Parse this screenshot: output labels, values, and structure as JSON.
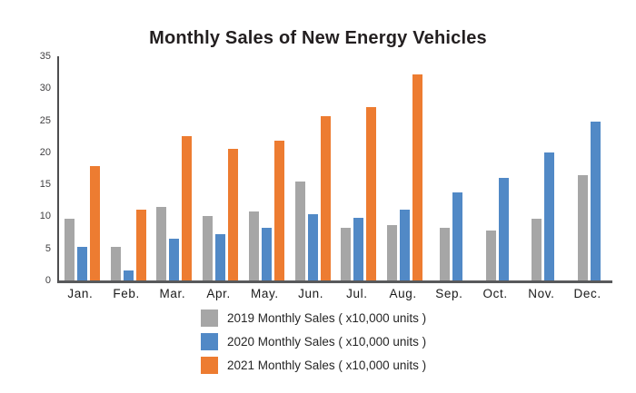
{
  "title": "Monthly Sales of New Energy Vehicles",
  "chart_data": {
    "type": "bar",
    "title": "Monthly Sales of New Energy Vehicles",
    "categories": [
      "Jan.",
      "Feb.",
      "Mar.",
      "Apr.",
      "May.",
      "Jun.",
      "Jul.",
      "Aug.",
      "Sep.",
      "Oct.",
      "Nov.",
      "Dec."
    ],
    "series": [
      {
        "name": "2019",
        "label": "2019 Monthly Sales ( x10,000 units )",
        "color": "#a6a6a6",
        "values": [
          9.7,
          5.3,
          11.5,
          10.0,
          10.8,
          15.5,
          8.2,
          8.6,
          8.2,
          7.8,
          9.6,
          16.5
        ]
      },
      {
        "name": "2020",
        "label": "2020 Monthly Sales ( x10,000 units )",
        "color": "#5189c6",
        "values": [
          5.2,
          1.5,
          6.5,
          7.2,
          8.2,
          10.4,
          9.8,
          11.0,
          13.8,
          16.0,
          20.0,
          24.8
        ]
      },
      {
        "name": "2021",
        "label": "2021 Monthly Sales ( x10,000 units )",
        "color": "#ed7c31",
        "values": [
          17.9,
          11.1,
          22.6,
          20.6,
          21.8,
          25.7,
          27.1,
          32.1,
          null,
          null,
          null,
          null
        ]
      }
    ],
    "xlabel": "",
    "ylabel": "",
    "ylim": [
      0,
      35
    ],
    "yticks": [
      0,
      5,
      10,
      15,
      20,
      25,
      30,
      35
    ],
    "grid": false,
    "legend_position": "bottom"
  },
  "colors": {
    "axis_line": "#4d4d4f",
    "baseline": "#58595b",
    "tick_text": "#414042",
    "title_text": "#231f20"
  }
}
